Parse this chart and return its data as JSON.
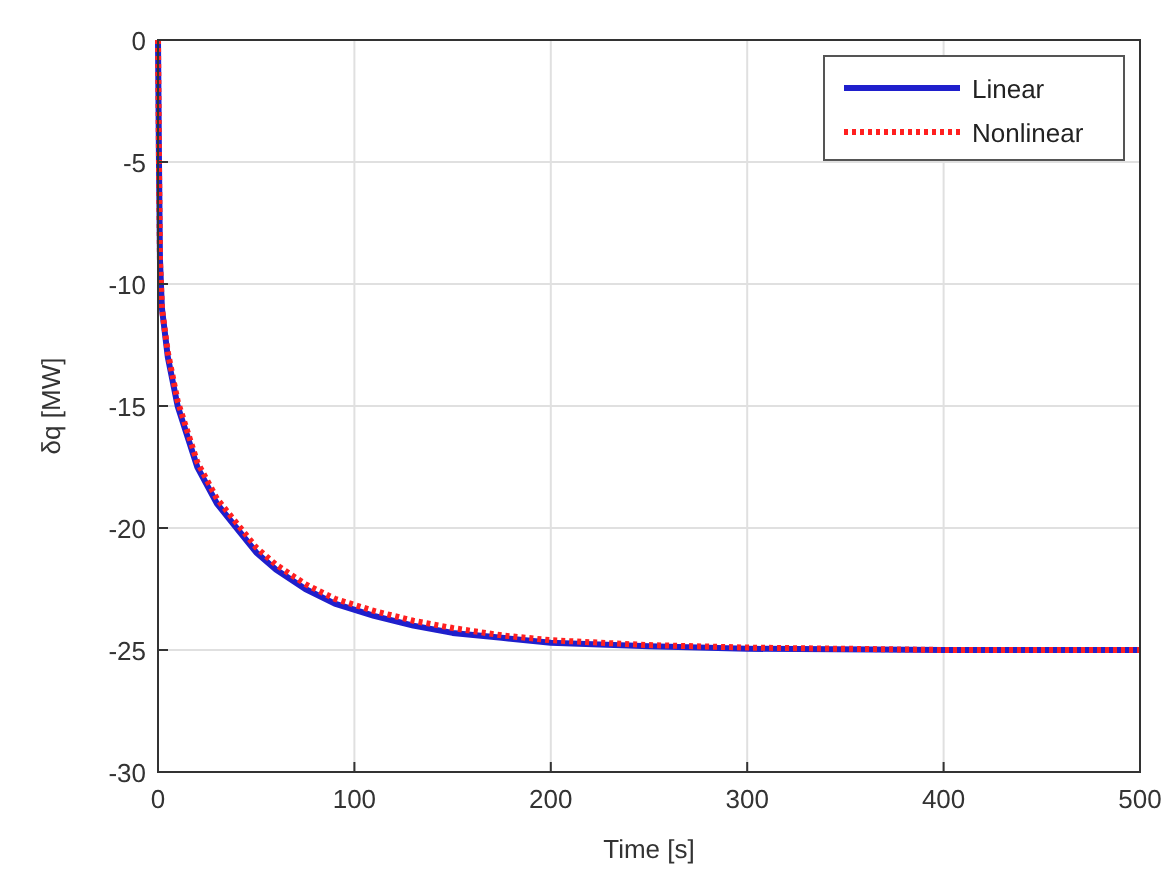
{
  "chart_data": {
    "type": "line",
    "xlabel": "Time [s]",
    "ylabel": "δq [MW]",
    "xlim": [
      0,
      500
    ],
    "ylim": [
      -30,
      0
    ],
    "xticks": [
      0,
      100,
      200,
      300,
      400,
      500
    ],
    "yticks": [
      -30,
      -25,
      -20,
      -15,
      -10,
      -5,
      0
    ],
    "grid": true,
    "legend": "top right",
    "series": [
      {
        "name": "Linear",
        "color": "#1f1fcc",
        "line_style": "solid",
        "x": [
          0,
          0.5,
          1,
          2,
          5,
          10,
          20,
          30,
          40,
          50,
          60,
          75,
          90,
          110,
          130,
          150,
          175,
          200,
          250,
          300,
          400,
          500
        ],
        "values": [
          0,
          -5,
          -9,
          -11,
          -13,
          -15,
          -17.5,
          -19,
          -20,
          -21,
          -21.7,
          -22.5,
          -23.1,
          -23.6,
          -24,
          -24.3,
          -24.5,
          -24.7,
          -24.85,
          -24.95,
          -25,
          -25
        ]
      },
      {
        "name": "Nonlinear",
        "color": "#ff2020",
        "line_style": "dotted",
        "x": [
          0,
          0.5,
          1,
          2,
          5,
          10,
          20,
          30,
          40,
          50,
          60,
          75,
          90,
          110,
          130,
          150,
          175,
          200,
          250,
          300,
          400,
          500
        ],
        "values": [
          0,
          -5,
          -9,
          -11,
          -12.8,
          -14.8,
          -17.3,
          -18.8,
          -19.8,
          -20.8,
          -21.5,
          -22.3,
          -22.9,
          -23.4,
          -23.8,
          -24.1,
          -24.4,
          -24.6,
          -24.8,
          -24.9,
          -25,
          -25
        ]
      }
    ]
  }
}
